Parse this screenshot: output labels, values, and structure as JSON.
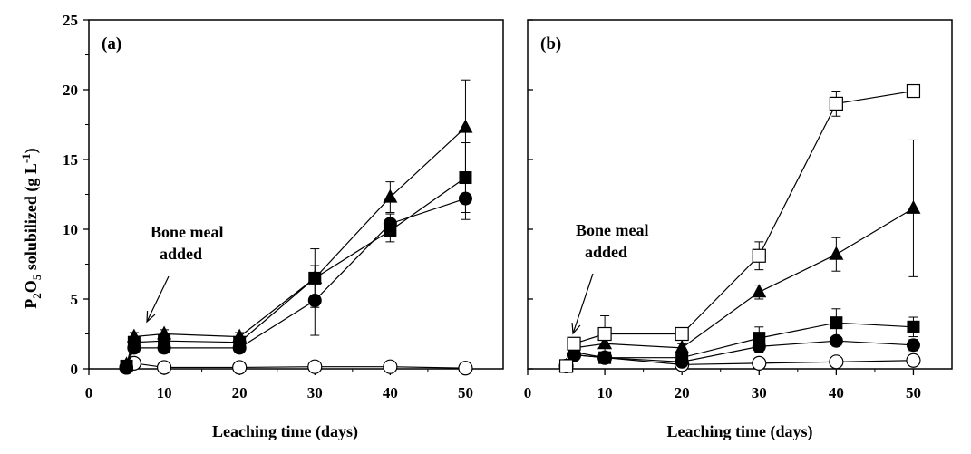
{
  "ylabel_parts": {
    "p": "P",
    "p_sub": "2",
    "o": "O",
    "o_sub": "5",
    "rest": " solubilized (g L",
    "unit_sup": "-1",
    "close": ")"
  },
  "chart_data": [
    {
      "type": "line",
      "panel_label": "(a)",
      "xlabel": "Leaching time (days)",
      "xlim": [
        0,
        55
      ],
      "ylim": [
        0,
        25
      ],
      "xticks": [
        0,
        10,
        20,
        30,
        40,
        50
      ],
      "yticks": [
        0,
        5,
        10,
        15,
        20,
        25
      ],
      "grid": false,
      "annotation": {
        "lines": [
          "Bone meal",
          "added"
        ],
        "points_to_x": 6
      },
      "series": [
        {
          "marker": "open-circle",
          "x": [
            5,
            6,
            10,
            20,
            30,
            40,
            50
          ],
          "y": [
            0.1,
            0.4,
            0.1,
            0.1,
            0.15,
            0.15,
            0.05
          ],
          "err": [
            0,
            0,
            0,
            0,
            0,
            0,
            0
          ]
        },
        {
          "marker": "filled-circle",
          "x": [
            5,
            6,
            10,
            20,
            30,
            40,
            50
          ],
          "y": [
            0.1,
            1.5,
            1.5,
            1.5,
            4.9,
            10.4,
            12.2
          ],
          "err": [
            0,
            0.2,
            0.2,
            0.2,
            2.5,
            0.7,
            1.5
          ]
        },
        {
          "marker": "filled-square",
          "x": [
            5,
            6,
            10,
            20,
            30,
            40,
            50
          ],
          "y": [
            0.2,
            1.9,
            2.0,
            1.9,
            6.5,
            9.9,
            13.7
          ],
          "err": [
            0,
            0.2,
            0.3,
            0.3,
            2.1,
            0.8,
            2.5
          ]
        },
        {
          "marker": "filled-triangle",
          "x": [
            5,
            6,
            10,
            20,
            30,
            40,
            50
          ],
          "y": [
            0.3,
            2.3,
            2.5,
            2.3,
            6.5,
            12.3,
            17.3
          ],
          "err": [
            0,
            0.3,
            0.3,
            0.3,
            0.3,
            1.1,
            3.4
          ]
        }
      ]
    },
    {
      "type": "line",
      "panel_label": "(b)",
      "xlabel": "Leaching time (days)",
      "xlim": [
        0,
        55
      ],
      "ylim": [
        0,
        25
      ],
      "xticks": [
        0,
        10,
        20,
        30,
        40,
        50
      ],
      "yticks": [
        0,
        5,
        10,
        15,
        20,
        25
      ],
      "grid": false,
      "annotation": {
        "lines": [
          "Bone meal",
          "added"
        ],
        "points_to_x": 6
      },
      "series": [
        {
          "marker": "open-circle",
          "x": [
            5,
            6,
            10,
            20,
            30,
            40,
            50
          ],
          "y": [
            0.2,
            1.0,
            0.8,
            0.3,
            0.4,
            0.5,
            0.6
          ],
          "err": [
            0,
            0,
            0,
            0,
            0,
            0,
            0
          ]
        },
        {
          "marker": "filled-circle",
          "x": [
            5,
            6,
            10,
            20,
            30,
            40,
            50
          ],
          "y": [
            0.2,
            1.0,
            0.8,
            0.5,
            1.6,
            2.0,
            1.7
          ],
          "err": [
            0,
            0.1,
            0.1,
            0.1,
            0.4,
            0.3,
            0.4
          ]
        },
        {
          "marker": "filled-square",
          "x": [
            5,
            6,
            10,
            20,
            30,
            40,
            50
          ],
          "y": [
            0.2,
            1.2,
            0.8,
            0.8,
            2.2,
            3.3,
            3.0
          ],
          "err": [
            0,
            0.2,
            0.1,
            0.2,
            0.8,
            1.0,
            0.7
          ]
        },
        {
          "marker": "filled-triangle",
          "x": [
            5,
            6,
            10,
            20,
            30,
            40,
            50
          ],
          "y": [
            0.2,
            1.5,
            1.8,
            1.5,
            5.5,
            8.2,
            11.5
          ],
          "err": [
            0,
            0.2,
            0.3,
            0.3,
            0.5,
            1.2,
            4.9
          ]
        },
        {
          "marker": "open-square",
          "x": [
            5,
            6,
            10,
            20,
            30,
            40,
            50
          ],
          "y": [
            0.2,
            1.8,
            2.5,
            2.5,
            8.1,
            19.0,
            19.9
          ],
          "err": [
            0,
            0.1,
            1.3,
            0.2,
            1.0,
            0.9,
            0.2
          ]
        }
      ]
    }
  ]
}
